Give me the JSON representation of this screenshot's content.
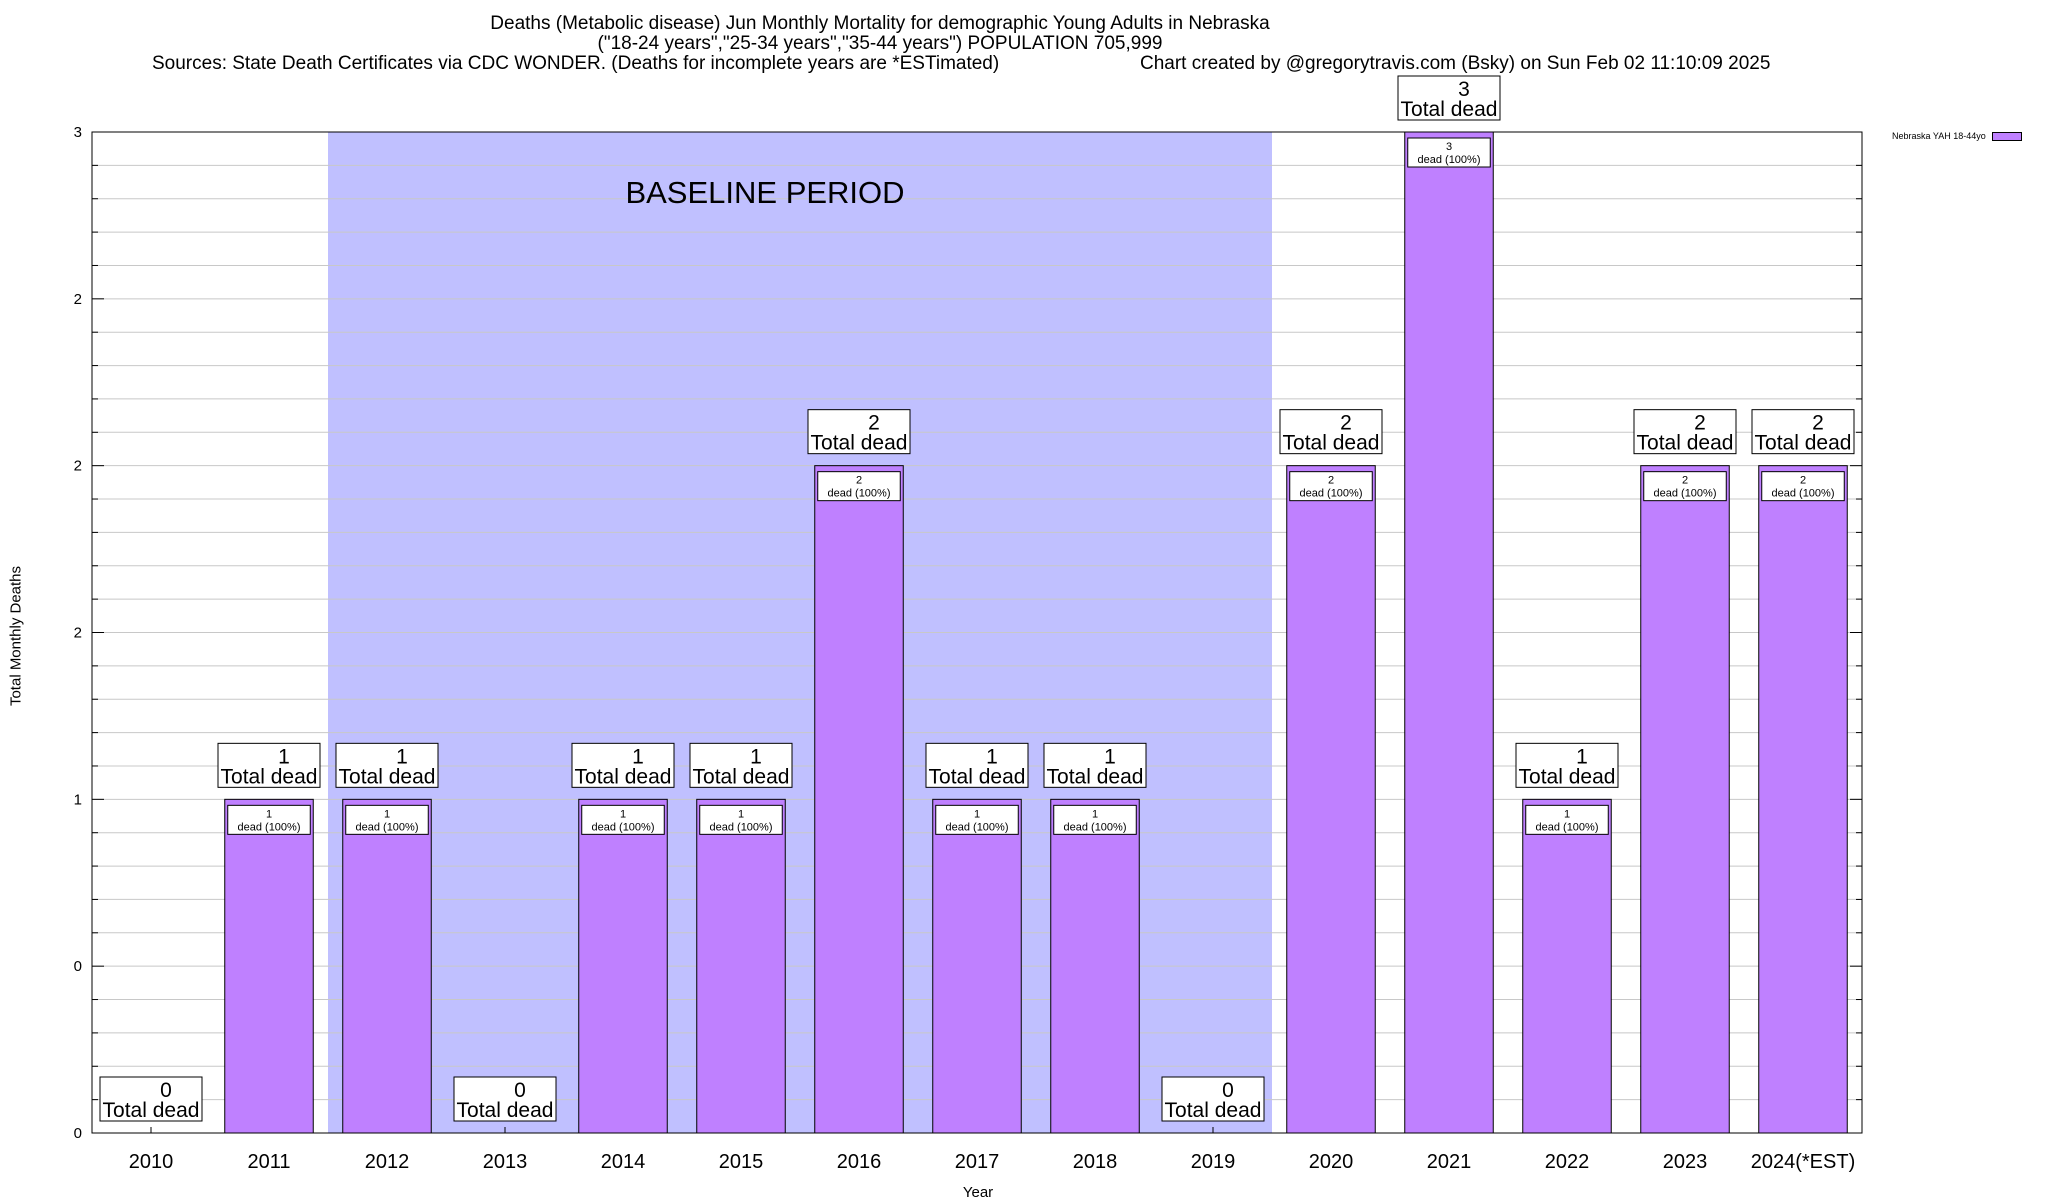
{
  "chart_data": {
    "type": "bar",
    "title": "Deaths (Metabolic disease) Jun Monthly Mortality for demographic Young Adults in Nebraska",
    "subtitle": "(\"18-24 years\",\"25-34 years\",\"35-44 years\") POPULATION 705,999",
    "sources": "Sources: State Death Certificates via CDC WONDER. (Deaths for incomplete years are *ESTimated)",
    "credit": "Chart created by @gregorytravis.com (Bsky) on Sun Feb 02 11:10:09 2025",
    "xlabel": "Year",
    "ylabel": "Total Monthly Deaths",
    "categories": [
      "2010",
      "2011",
      "2012",
      "2013",
      "2014",
      "2015",
      "2016",
      "2017",
      "2018",
      "2019",
      "2020",
      "2021",
      "2022",
      "2023",
      "2024(*EST)"
    ],
    "series": [
      {
        "name": "Nebraska YAH 18-44yo",
        "values": [
          0,
          1,
          1,
          0,
          1,
          1,
          2,
          1,
          1,
          0,
          2,
          3,
          1,
          2,
          2
        ]
      }
    ],
    "ylim": [
      0,
      3
    ],
    "y_ticks": [
      {
        "value": 0,
        "label": "0"
      },
      {
        "value": 0.5,
        "label": "0"
      },
      {
        "value": 1,
        "label": "1"
      },
      {
        "value": 1.5,
        "label": "2"
      },
      {
        "value": 2,
        "label": "2"
      },
      {
        "value": 2.5,
        "label": "2"
      },
      {
        "value": 3,
        "label": "3"
      }
    ],
    "bar_label_suffix": "Total dead",
    "segment_label_suffix": "dead (100%)",
    "baseline": {
      "label": "BASELINE PERIOD",
      "from": "2012",
      "to": "2019"
    },
    "colors": {
      "bar": "#bf80ff",
      "baseline": "#c0c0ff",
      "grid": "#c8c8c8"
    },
    "grid": true,
    "legend_position": "top-right"
  }
}
